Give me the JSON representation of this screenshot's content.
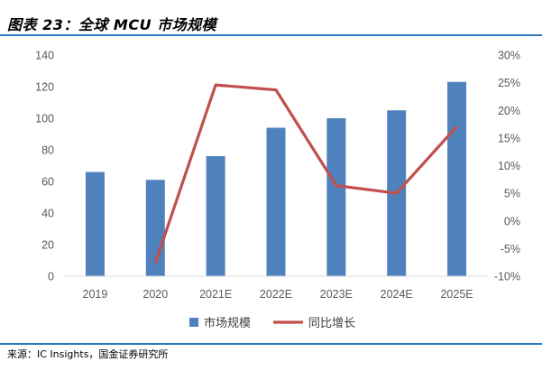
{
  "figure_title": "图表 23：全球 MCU 市场规模",
  "source_text": "来源：IC Insights，国金证券研究所",
  "colors": {
    "bar": "#4F81BD",
    "line": "#C0504D",
    "rule": "#2A7BBF",
    "axis": "#D9D9D9"
  },
  "chart_data": {
    "type": "bar",
    "categories": [
      "2019",
      "2020",
      "2021E",
      "2022E",
      "2023E",
      "2024E",
      "2025E"
    ],
    "series": [
      {
        "name": "市场规模",
        "type": "bar",
        "axis": "left",
        "values": [
          66,
          61,
          76,
          94,
          100,
          105,
          123
        ]
      },
      {
        "name": "同比增长",
        "type": "line",
        "axis": "right",
        "values": [
          null,
          -7.6,
          24.6,
          23.7,
          6.4,
          5.0,
          17.1
        ]
      }
    ],
    "y_left": {
      "min": 0,
      "max": 140,
      "ticks": [
        "0",
        "20",
        "40",
        "60",
        "80",
        "100",
        "120",
        "140"
      ]
    },
    "y_right": {
      "min": -10,
      "max": 30,
      "ticks": [
        "-10%",
        "-5%",
        "0%",
        "5%",
        "10%",
        "15%",
        "20%",
        "25%",
        "30%"
      ]
    },
    "legend_position": "bottom",
    "grid": false
  }
}
